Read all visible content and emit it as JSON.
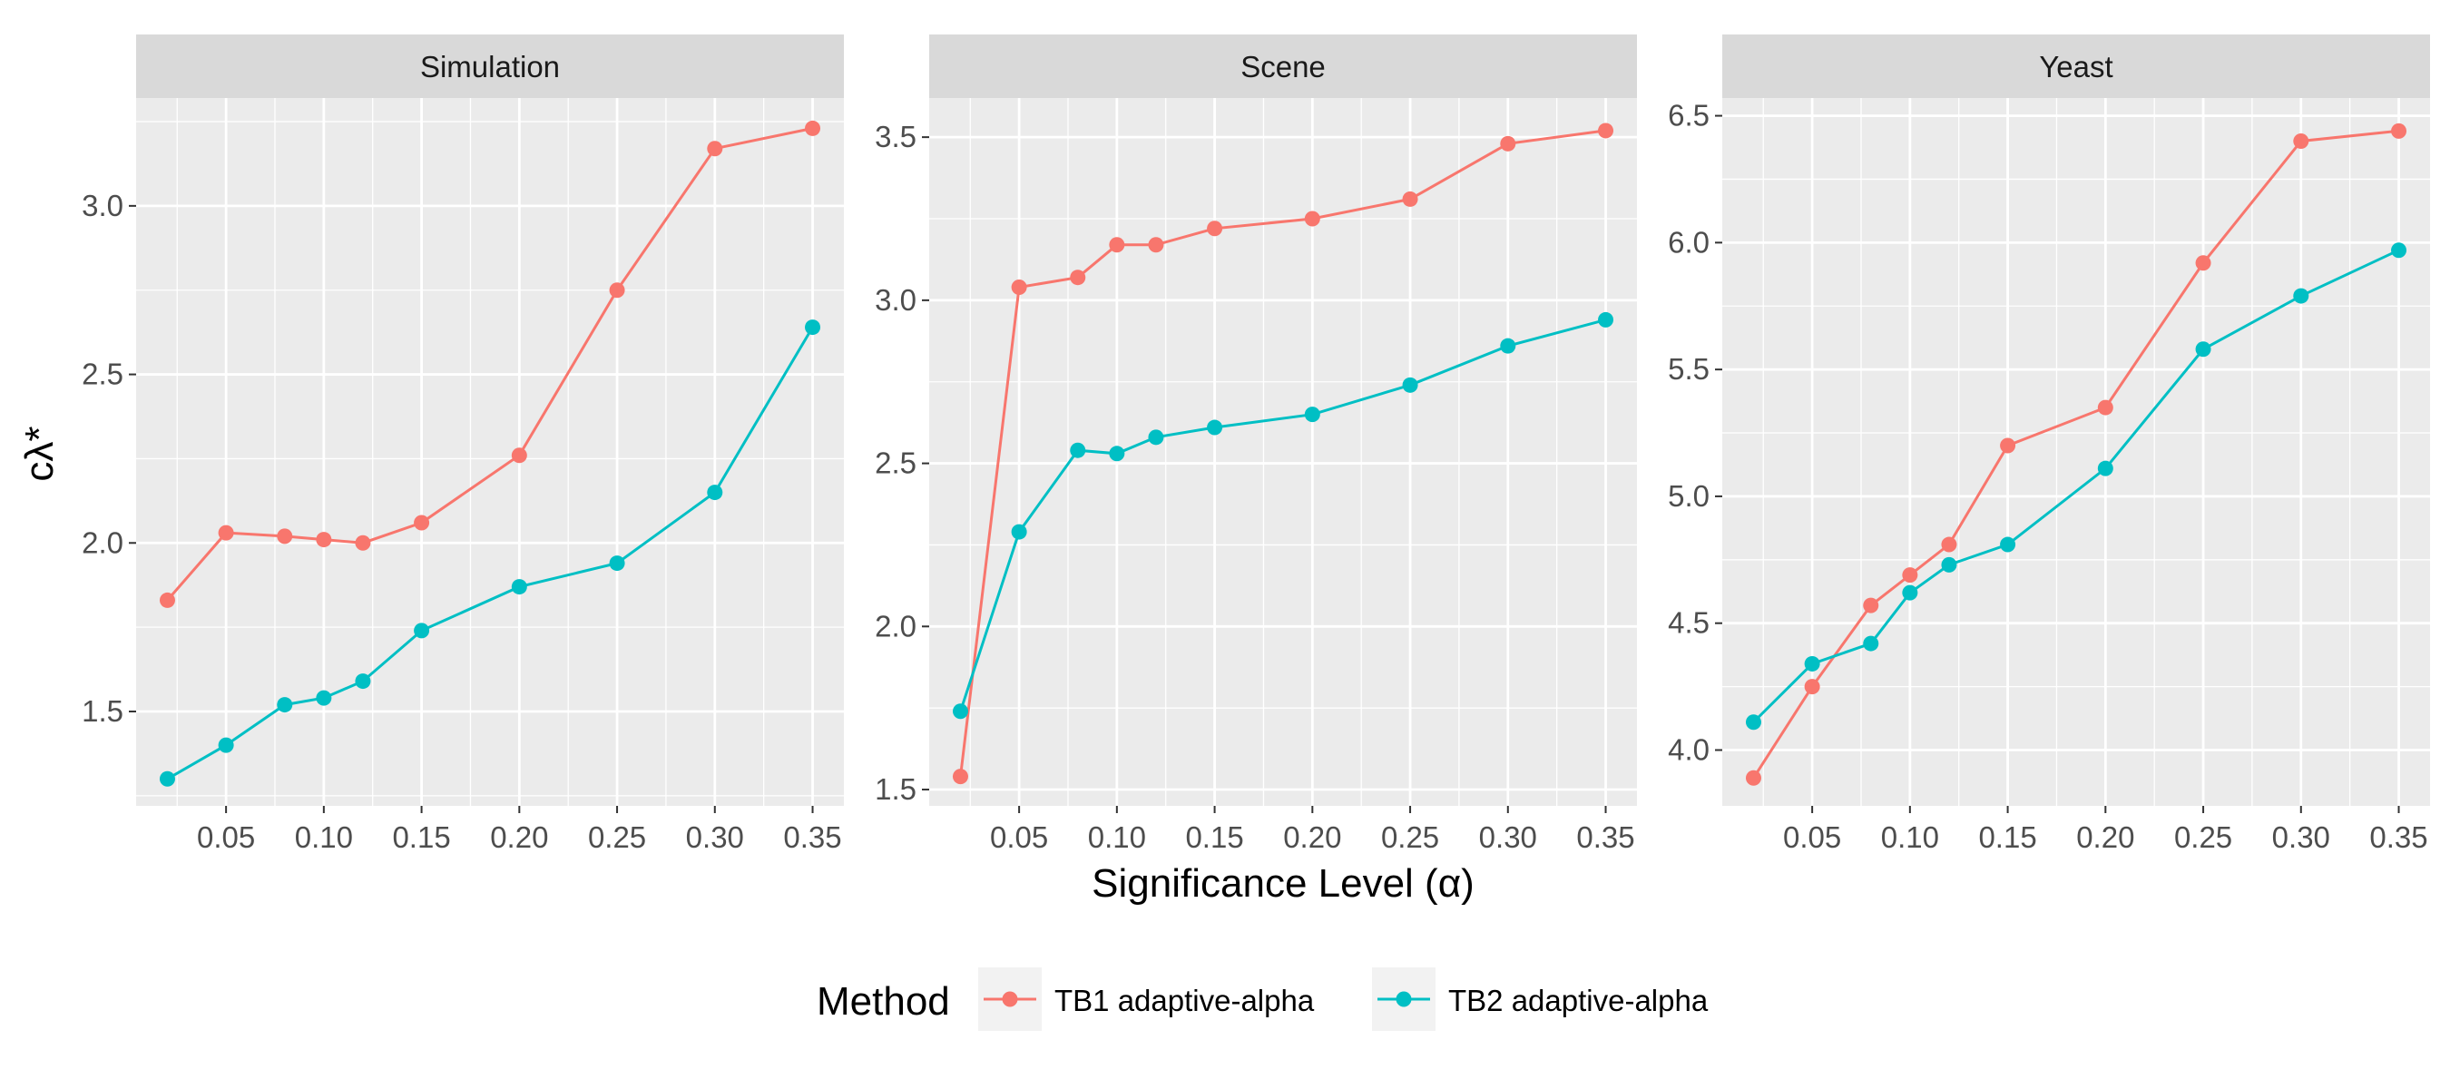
{
  "chart_data": {
    "type": "line",
    "x_label": "Significance Level (α)",
    "y_label": "cλ*",
    "x_ticks": [
      0.05,
      0.1,
      0.15,
      0.2,
      0.25,
      0.3,
      0.35
    ],
    "x_tick_labels": [
      "0.05",
      "0.10",
      "0.15",
      "0.20",
      "0.25",
      "0.30",
      "0.35"
    ],
    "xlim": [
      0.004,
      0.366
    ],
    "x": [
      0.02,
      0.05,
      0.08,
      0.1,
      0.12,
      0.15,
      0.2,
      0.25,
      0.3,
      0.35
    ],
    "legend": {
      "title": "Method",
      "position": "bottom",
      "entries": [
        "TB1 adaptive-alpha",
        "TB2 adaptive-alpha"
      ]
    },
    "colors": {
      "TB1 adaptive-alpha": "#F8766D",
      "TB2 adaptive-alpha": "#00BFC4"
    },
    "panels": [
      {
        "title": "Simulation",
        "ylim": [
          1.22,
          3.32
        ],
        "y_ticks": [
          1.5,
          2.0,
          2.5,
          3.0
        ],
        "y_tick_labels": [
          "1.5",
          "2.0",
          "2.5",
          "3.0"
        ],
        "series": [
          {
            "name": "TB1 adaptive-alpha",
            "values": [
              1.83,
              2.03,
              2.02,
              2.01,
              2.0,
              2.06,
              2.26,
              2.75,
              3.17,
              3.23
            ]
          },
          {
            "name": "TB2 adaptive-alpha",
            "values": [
              1.3,
              1.4,
              1.52,
              1.54,
              1.59,
              1.74,
              1.87,
              1.94,
              2.15,
              2.64
            ]
          }
        ]
      },
      {
        "title": "Scene",
        "ylim": [
          1.45,
          3.62
        ],
        "y_ticks": [
          1.5,
          2.0,
          2.5,
          3.0,
          3.5
        ],
        "y_tick_labels": [
          "1.5",
          "2.0",
          "2.5",
          "3.0",
          "3.5"
        ],
        "series": [
          {
            "name": "TB1 adaptive-alpha",
            "values": [
              1.54,
              3.04,
              3.07,
              3.17,
              3.17,
              3.22,
              3.25,
              3.31,
              3.48,
              3.52
            ]
          },
          {
            "name": "TB2 adaptive-alpha",
            "values": [
              1.74,
              2.29,
              2.54,
              2.53,
              2.58,
              2.61,
              2.65,
              2.74,
              2.86,
              2.94
            ]
          }
        ]
      },
      {
        "title": "Yeast",
        "ylim": [
          3.78,
          6.57
        ],
        "y_ticks": [
          4.0,
          4.5,
          5.0,
          5.5,
          6.0,
          6.5
        ],
        "y_tick_labels": [
          "4.0",
          "4.5",
          "5.0",
          "5.5",
          "6.0",
          "6.5"
        ],
        "series": [
          {
            "name": "TB1 adaptive-alpha",
            "values": [
              3.89,
              4.25,
              4.57,
              4.69,
              4.81,
              5.2,
              5.35,
              5.92,
              6.4,
              6.44
            ]
          },
          {
            "name": "TB2 adaptive-alpha",
            "values": [
              4.11,
              4.34,
              4.42,
              4.62,
              4.73,
              4.81,
              5.11,
              5.58,
              5.79,
              5.97
            ]
          }
        ]
      }
    ]
  }
}
